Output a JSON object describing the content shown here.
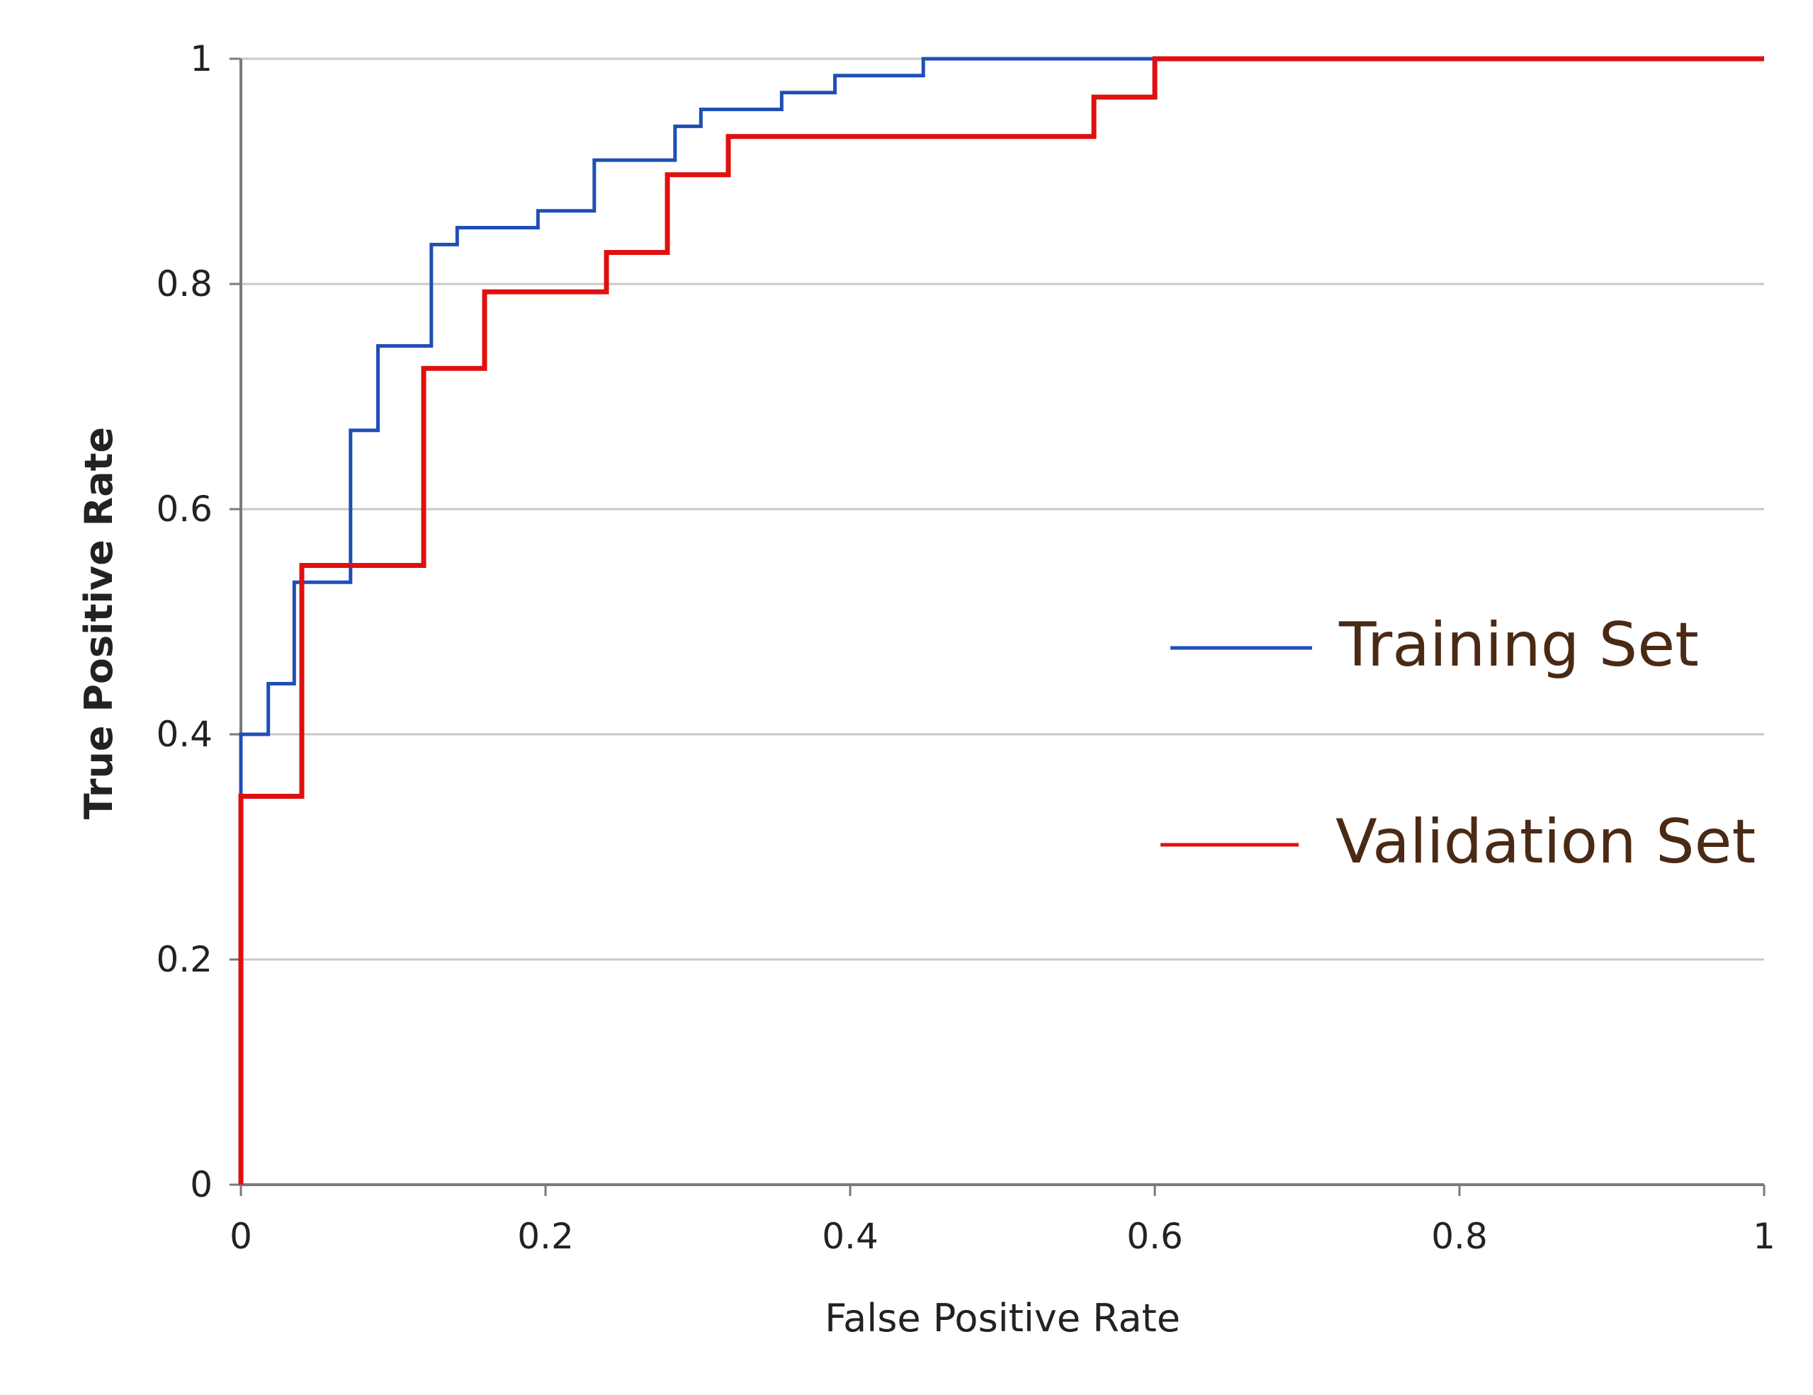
{
  "chart_data": {
    "type": "line",
    "title": "",
    "xlabel": "False Positive Rate",
    "ylabel": "True Positive Rate",
    "xlim": [
      0,
      1
    ],
    "ylim": [
      0,
      1
    ],
    "x_ticks": [
      0,
      0.2,
      0.4,
      0.6,
      0.8,
      1
    ],
    "y_ticks": [
      0,
      0.2,
      0.4,
      0.6,
      0.8,
      1
    ],
    "x_tick_labels": [
      "0",
      "0.2",
      "0.4",
      "0.6",
      "0.8",
      "1"
    ],
    "y_tick_labels": [
      "0",
      "0.2",
      "0.4",
      "0.6",
      "0.8",
      "1"
    ],
    "grid": "horizontal",
    "legend_position": "center-right",
    "legend_text_color": "#4a2a14",
    "series": [
      {
        "name": "Training Set",
        "color": "#1f4fb5",
        "x": [
          0,
          0,
          0.018,
          0.018,
          0.035,
          0.035,
          0.072,
          0.072,
          0.09,
          0.09,
          0.125,
          0.125,
          0.142,
          0.142,
          0.195,
          0.195,
          0.232,
          0.232,
          0.285,
          0.285,
          0.302,
          0.302,
          0.355,
          0.355,
          0.39,
          0.39,
          0.448,
          0.448,
          1
        ],
        "y": [
          0,
          0.4,
          0.4,
          0.445,
          0.445,
          0.535,
          0.535,
          0.67,
          0.67,
          0.745,
          0.745,
          0.835,
          0.835,
          0.85,
          0.85,
          0.865,
          0.865,
          0.91,
          0.91,
          0.94,
          0.94,
          0.955,
          0.955,
          0.97,
          0.97,
          0.985,
          0.985,
          1,
          1
        ]
      },
      {
        "name": "Validation Set",
        "color": "#e01010",
        "x": [
          0,
          0,
          0.04,
          0.04,
          0.12,
          0.12,
          0.16,
          0.16,
          0.24,
          0.24,
          0.28,
          0.28,
          0.32,
          0.32,
          0.56,
          0.56,
          0.6,
          0.6,
          1
        ],
        "y": [
          0,
          0.345,
          0.345,
          0.55,
          0.55,
          0.725,
          0.725,
          0.793,
          0.793,
          0.828,
          0.828,
          0.897,
          0.897,
          0.931,
          0.931,
          0.966,
          0.966,
          1,
          1
        ]
      }
    ]
  }
}
